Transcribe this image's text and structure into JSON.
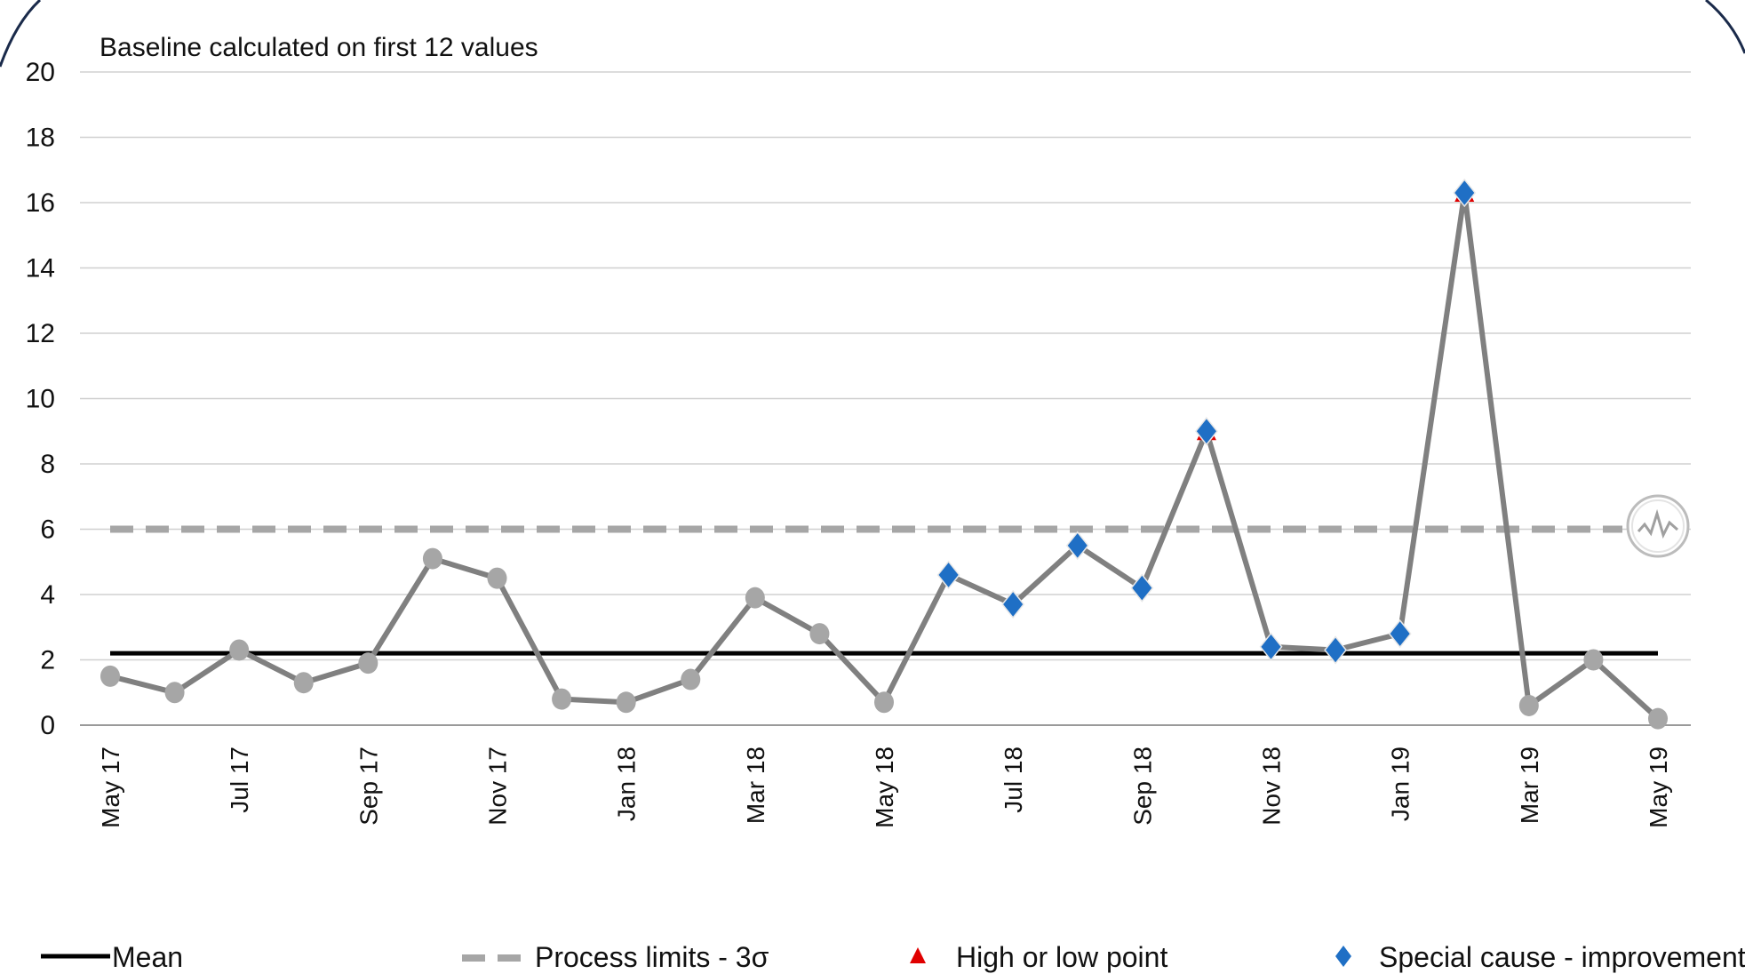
{
  "chart_data": {
    "type": "line",
    "annotation": "Baseline calculated on first 12 values",
    "ylim": [
      0,
      20
    ],
    "y_ticks": [
      0,
      2,
      4,
      6,
      8,
      10,
      12,
      14,
      16,
      18,
      20
    ],
    "grid": true,
    "x": [
      "May 17",
      "Jun 17",
      "Jul 17",
      "Aug 17",
      "Sep 17",
      "Oct 17",
      "Nov 17",
      "Dec 17",
      "Jan 18",
      "Feb 18",
      "Mar 18",
      "Apr 18",
      "May 18",
      "Jun 18",
      "Jul 18",
      "Aug 18",
      "Sep 18",
      "Oct 18",
      "Nov 18",
      "Dec 18",
      "Jan 19",
      "Feb 19",
      "Mar 19",
      "Apr 19",
      "May 19"
    ],
    "x_tick_labels": [
      "May 17",
      "",
      "Jul 17",
      "",
      "Sep 17",
      "",
      "Nov 17",
      "",
      "Jan 18",
      "",
      "Mar 18",
      "",
      "May 18",
      "",
      "Jul 18",
      "",
      "Sep 18",
      "",
      "Nov 18",
      "",
      "Jan 19",
      "",
      "Mar 19",
      "",
      "May 19"
    ],
    "values": [
      1.5,
      1.0,
      2.3,
      1.3,
      1.9,
      5.1,
      4.5,
      0.8,
      0.7,
      1.4,
      3.9,
      2.8,
      0.7,
      4.6,
      3.7,
      5.5,
      4.2,
      9.0,
      2.4,
      2.3,
      2.8,
      16.3,
      0.6,
      2.0,
      0.2
    ],
    "special_cause": [
      false,
      false,
      false,
      false,
      false,
      false,
      false,
      false,
      false,
      false,
      false,
      false,
      false,
      true,
      true,
      true,
      true,
      true,
      true,
      true,
      true,
      true,
      false,
      false,
      false
    ],
    "high_low_point": [
      false,
      false,
      false,
      false,
      false,
      false,
      false,
      false,
      false,
      false,
      false,
      false,
      false,
      false,
      false,
      false,
      false,
      true,
      false,
      false,
      false,
      true,
      false,
      false,
      false
    ],
    "mean": 2.2,
    "upper_process_limit": 6.0,
    "legend_placement": "bottom",
    "legend": [
      {
        "key": "mean",
        "label": "Mean",
        "color": "#000000"
      },
      {
        "key": "limits",
        "label": "Process limits - 3σ",
        "color": "#a6a6a6"
      },
      {
        "key": "highlow",
        "label": "High or low point",
        "color": "#e00000"
      },
      {
        "key": "special",
        "label": "Special cause - improvement",
        "color": "#1f6fc5"
      }
    ],
    "colors": {
      "line": "#808080",
      "point": "#a6a6a6",
      "special": "#1f6fc5",
      "highlow": "#e00000",
      "mean": "#000000",
      "limit": "#a6a6a6",
      "grid": "#d0d0d0"
    }
  }
}
